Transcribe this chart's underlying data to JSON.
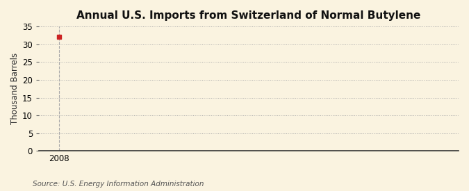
{
  "title": "Annual U.S. Imports from Switzerland of Normal Butylene",
  "ylabel": "Thousand Barrels",
  "source_text": "Source: U.S. Energy Information Administration",
  "background_color": "#faf3e0",
  "plot_background_color": "#faf3e0",
  "data_x": [
    2008
  ],
  "data_y": [
    32
  ],
  "marker_color": "#cc2222",
  "marker_size": 4,
  "xlim": [
    2007.4,
    2020
  ],
  "ylim": [
    0,
    35
  ],
  "yticks": [
    0,
    5,
    10,
    15,
    20,
    25,
    30,
    35
  ],
  "xticks": [
    2008
  ],
  "grid_color": "#aaaaaa",
  "grid_linestyle": ":",
  "grid_linewidth": 0.7,
  "vline_color": "#aaaaaa",
  "vline_linestyle": "--",
  "vline_linewidth": 0.8,
  "title_fontsize": 11,
  "axis_label_fontsize": 8.5,
  "tick_fontsize": 8.5,
  "source_fontsize": 7.5,
  "spine_bottom_color": "#333333"
}
